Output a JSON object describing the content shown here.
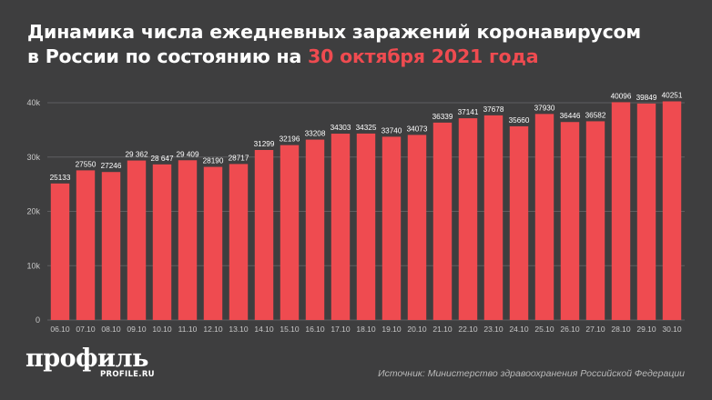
{
  "header": {
    "title_line1": "Динамика числа ежедневных заражений коронавирусом",
    "title_line2_prefix": "в России по состоянию на ",
    "title_line2_highlight": "30 октября 2021 года"
  },
  "branding": {
    "logo_text": "профиль",
    "logo_sub": "PROFILE.RU"
  },
  "source": "Источник: Министерство здравоохранения Российской Федерации",
  "colors": {
    "background": "#3e3e3f",
    "bar": "#ef4b50",
    "accent": "#ef4b50",
    "grid": "#5e5e60",
    "axis_text": "#c8c8c8"
  },
  "chart_data": {
    "type": "bar",
    "categories": [
      "06.10",
      "07.10",
      "08.10",
      "09.10",
      "10.10",
      "11.10",
      "12.10",
      "13.10",
      "14.10",
      "15.10",
      "16.10",
      "17.10",
      "18.10",
      "19.10",
      "20.10",
      "21.10",
      "22.10",
      "23.10",
      "24.10",
      "25.10",
      "26.10",
      "27.10",
      "28.10",
      "29.10",
      "30.10"
    ],
    "values": [
      25133,
      27550,
      27246,
      29362,
      28647,
      29409,
      28190,
      28717,
      31299,
      32196,
      33208,
      34303,
      34325,
      33740,
      34073,
      36339,
      37141,
      37678,
      35660,
      37930,
      36446,
      36582,
      40096,
      39849,
      40251
    ],
    "value_labels": [
      "25133",
      "27550",
      "27246",
      "29 362",
      "28 647",
      "29 409",
      "28190",
      "28717",
      "31299",
      "32196",
      "33208",
      "34303",
      "34325",
      "33740",
      "34073",
      "36339",
      "37141",
      "37678",
      "35660",
      "37930",
      "36446",
      "36582",
      "40096",
      "39849",
      "40251"
    ],
    "y_ticks": [
      0,
      10000,
      20000,
      30000,
      40000
    ],
    "y_tick_labels": [
      "0",
      "10k",
      "20k",
      "30k",
      "40k"
    ],
    "ylim": [
      0,
      40000
    ],
    "grid": true,
    "legend": "none"
  }
}
